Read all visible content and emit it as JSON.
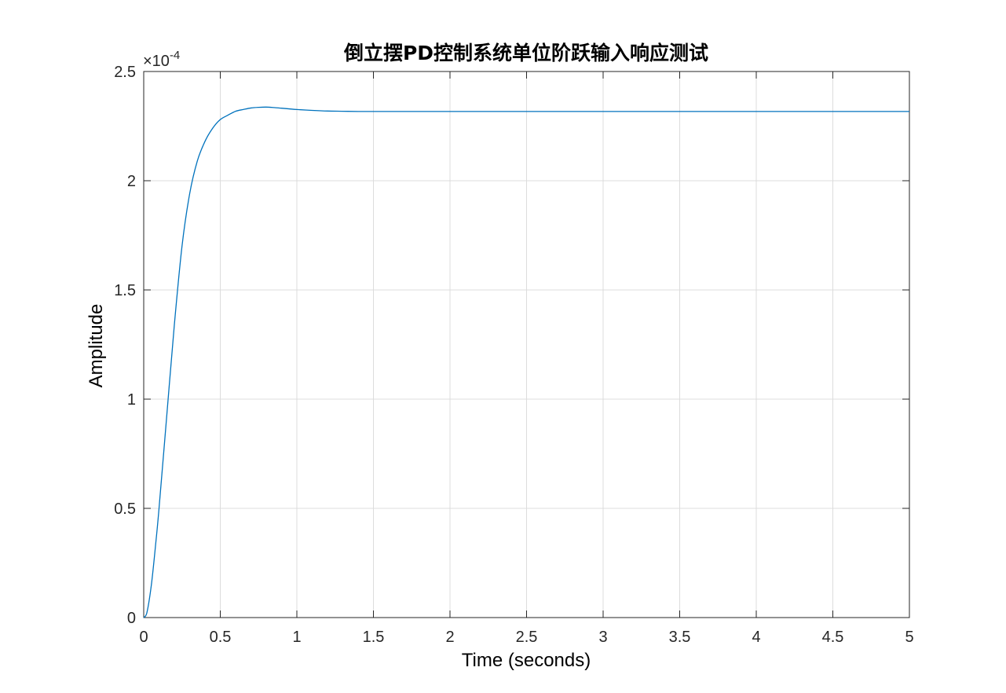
{
  "chart_data": {
    "type": "line",
    "title": "倒立摆PD控制系统单位阶跃输入响应测试",
    "xlabel": "Time (seconds)",
    "ylabel": "Amplitude",
    "xlim": [
      0,
      5
    ],
    "ylim": [
      0,
      2.5
    ],
    "y_multiplier": "×10",
    "y_multiplier_exponent": "-4",
    "grid": true,
    "line_color": "#0072BD",
    "grid_color": "#dcdcdc",
    "axis_color": "#262626",
    "x_ticks": [
      {
        "value": 0,
        "label": "0"
      },
      {
        "value": 0.5,
        "label": "0.5"
      },
      {
        "value": 1,
        "label": "1"
      },
      {
        "value": 1.5,
        "label": "1.5"
      },
      {
        "value": 2,
        "label": "2"
      },
      {
        "value": 2.5,
        "label": "2.5"
      },
      {
        "value": 3,
        "label": "3"
      },
      {
        "value": 3.5,
        "label": "3.5"
      },
      {
        "value": 4,
        "label": "4"
      },
      {
        "value": 4.5,
        "label": "4.5"
      },
      {
        "value": 5,
        "label": "5"
      }
    ],
    "y_ticks": [
      {
        "value": 0,
        "label": "0"
      },
      {
        "value": 0.5,
        "label": "0.5"
      },
      {
        "value": 1,
        "label": "1"
      },
      {
        "value": 1.5,
        "label": "1.5"
      },
      {
        "value": 2,
        "label": "2"
      },
      {
        "value": 2.5,
        "label": "2.5"
      }
    ],
    "series": [
      {
        "x": [
          0,
          0.02,
          0.05,
          0.08,
          0.1,
          0.15,
          0.2,
          0.25,
          0.3,
          0.35,
          0.4,
          0.45,
          0.5,
          0.55,
          0.6,
          0.65,
          0.7,
          0.75,
          0.8,
          0.85,
          0.9,
          0.95,
          1.0,
          1.1,
          1.2,
          1.3,
          1.4,
          1.5,
          1.75,
          2.0,
          2.5,
          3.0,
          3.5,
          4.0,
          4.5,
          5.0
        ],
        "y": [
          0,
          0.02,
          0.15,
          0.35,
          0.5,
          0.92,
          1.34,
          1.7,
          1.94,
          2.09,
          2.18,
          2.24,
          2.28,
          2.3,
          2.318,
          2.326,
          2.333,
          2.336,
          2.337,
          2.335,
          2.332,
          2.329,
          2.326,
          2.322,
          2.319,
          2.318,
          2.317,
          2.317,
          2.317,
          2.317,
          2.317,
          2.317,
          2.317,
          2.317,
          2.317,
          2.317
        ]
      }
    ]
  }
}
